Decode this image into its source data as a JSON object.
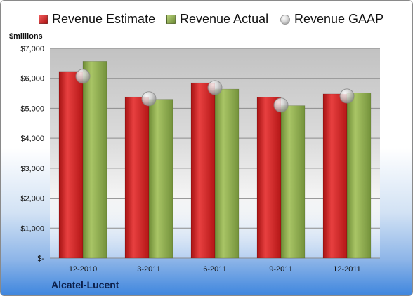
{
  "chart_data": {
    "type": "bar",
    "title": "",
    "ylabel": "$millions",
    "xlabel": "",
    "ylim": [
      0,
      7000
    ],
    "yticks": [
      0,
      1000,
      2000,
      3000,
      4000,
      5000,
      6000,
      7000
    ],
    "ytick_labels": [
      "$-",
      "$1,000",
      "$2,000",
      "$3,000",
      "$4,000",
      "$5,000",
      "$6,000",
      "$7,000"
    ],
    "categories": [
      "12-2010",
      "3-2011",
      "6-2011",
      "9-2011",
      "12-2011"
    ],
    "series": [
      {
        "name": "Revenue Estimate",
        "kind": "bar",
        "color": "#d42424",
        "values": [
          6230,
          5380,
          5850,
          5370,
          5480
        ]
      },
      {
        "name": "Revenue Actual",
        "kind": "bar",
        "color": "#8aaa4e",
        "values": [
          6570,
          5300,
          5640,
          5090,
          5510
        ]
      },
      {
        "name": "Revenue GAAP",
        "kind": "marker",
        "color": "#bfbfbf",
        "values": [
          6070,
          5320,
          5690,
          5110,
          5410
        ]
      }
    ],
    "grid": true,
    "legend_position": "top"
  },
  "company": "Alcatel-Lucent"
}
